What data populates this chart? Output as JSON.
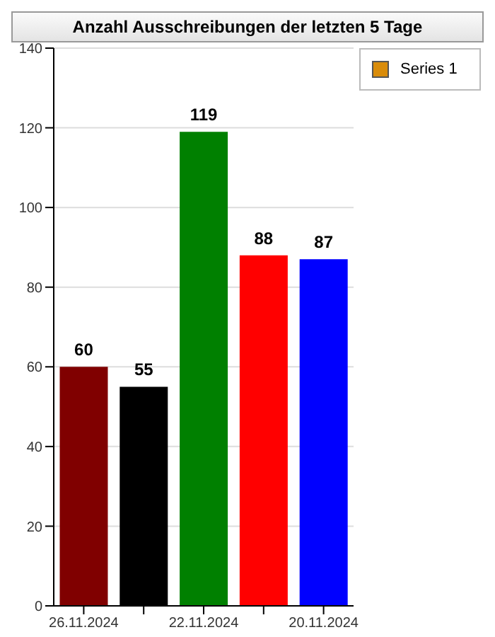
{
  "chart_data": {
    "type": "bar",
    "title": "Anzahl Ausschreibungen der letzten 5 Tage",
    "categories": [
      "26.11.2024",
      null,
      "22.11.2024",
      null,
      "20.11.2024"
    ],
    "series": [
      {
        "name": "Series 1",
        "color": "#d98c0a",
        "colors": [
          "#800000",
          "#000000",
          "#008000",
          "#ff0000",
          "#0000ff"
        ],
        "values": [
          60,
          55,
          119,
          88,
          87
        ]
      }
    ],
    "ylim": [
      0,
      140
    ],
    "yticks": [
      0,
      20,
      40,
      60,
      80,
      100,
      120,
      140
    ],
    "grid": "y",
    "legend": "top right",
    "data_labels": true
  }
}
